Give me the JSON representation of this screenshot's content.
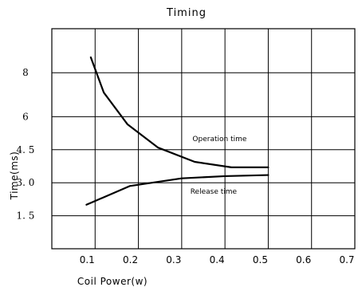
{
  "chart_data": {
    "type": "line",
    "title": "Timing",
    "xlabel": "Coil Power(w)",
    "ylabel": "Time(ms)",
    "xlim": [
      0,
      0.7
    ],
    "ylim": [
      0,
      10
    ],
    "xticks": [
      0.1,
      0.2,
      0.3,
      0.4,
      0.5,
      0.6,
      0.7
    ],
    "xtick_labels": [
      "0.1",
      "0.2",
      "0.3",
      "0.4",
      "0.5",
      "0.6",
      "0.7"
    ],
    "yticks": [
      1.5,
      3.0,
      4.5,
      6,
      8
    ],
    "ytick_labels": [
      "1. 5",
      "3. 0",
      "4. 5",
      "6",
      "8"
    ],
    "grid": true,
    "series": [
      {
        "name": "Operation time",
        "x": [
          0.09,
          0.12,
          0.175,
          0.245,
          0.33,
          0.415,
          0.5
        ],
        "y": [
          8.7,
          7.1,
          5.65,
          4.6,
          3.95,
          3.7,
          3.7
        ]
      },
      {
        "name": "Release time",
        "x": [
          0.08,
          0.18,
          0.3,
          0.4,
          0.5
        ],
        "y": [
          2.0,
          2.85,
          3.2,
          3.3,
          3.35
        ]
      }
    ],
    "annotations": [
      {
        "text": "Operation time",
        "x": 0.325,
        "y": 4.9
      },
      {
        "text": "Release time",
        "x": 0.32,
        "y": 2.5
      }
    ]
  }
}
